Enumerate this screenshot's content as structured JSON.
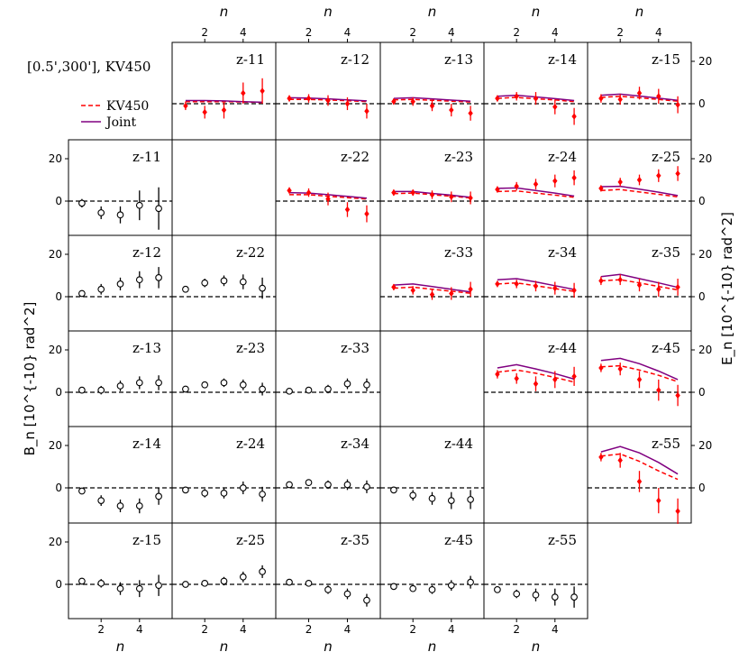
{
  "chart_data": {
    "type": "scatter",
    "title": "[0.5',300'],  KV450",
    "x_label": "n",
    "y_label_left": "B_n [10^{-10} rad^2]",
    "y_label_right": "E_n [10^{-10} rad^2]",
    "x_ticks": [
      2,
      4
    ],
    "y_ticks": [
      0,
      20
    ],
    "xlim": [
      0.3,
      5.7
    ],
    "ylim": [
      -12,
      28
    ],
    "n": [
      1,
      2,
      3,
      4,
      5
    ],
    "legend": {
      "placement": "upper-left",
      "entries": [
        "KV450",
        "Joint"
      ]
    },
    "colors": {
      "kv450": "#ff0000",
      "joint": "#800080",
      "b_modes": "#000000"
    },
    "e_modes": [
      {
        "label": "z-11",
        "y": [
          -1,
          -4,
          -3,
          5,
          6
        ],
        "err": [
          2,
          3,
          4,
          5,
          6
        ],
        "kv450": [
          1.0,
          1.0,
          1.0,
          0.8,
          0.6
        ],
        "joint": [
          1.5,
          1.5,
          1.3,
          1.0,
          0.7
        ]
      },
      {
        "label": "z-12",
        "y": [
          2.5,
          2.5,
          1.5,
          0,
          -3.5
        ],
        "err": [
          1.5,
          2,
          2.5,
          3,
          3.5
        ],
        "kv450": [
          2.0,
          2.0,
          1.8,
          1.4,
          1.0
        ],
        "joint": [
          2.8,
          2.7,
          2.3,
          1.8,
          1.3
        ]
      },
      {
        "label": "z-13",
        "y": [
          1,
          1,
          -1,
          -3,
          -4.5
        ],
        "err": [
          1.5,
          2,
          2.5,
          3,
          3.5
        ],
        "kv450": [
          1.8,
          2.0,
          1.6,
          1.2,
          0.8
        ],
        "joint": [
          2.5,
          2.8,
          2.3,
          1.7,
          1.2
        ]
      },
      {
        "label": "z-14",
        "y": [
          2.5,
          3.5,
          2.5,
          -1.5,
          -6
        ],
        "err": [
          1.5,
          2,
          3,
          3.5,
          4
        ],
        "kv450": [
          2.5,
          3.0,
          2.3,
          1.8,
          1.0
        ],
        "joint": [
          3.5,
          4.0,
          3.2,
          2.4,
          1.5
        ]
      },
      {
        "label": "z-15",
        "y": [
          2.5,
          2,
          5,
          3.5,
          -0.5
        ],
        "err": [
          2,
          2.5,
          3,
          3.5,
          4
        ],
        "kv450": [
          3.0,
          3.5,
          2.8,
          2.0,
          1.2
        ],
        "joint": [
          4.0,
          4.5,
          3.6,
          2.6,
          1.6
        ]
      },
      {
        "label": "z-22",
        "y": [
          5,
          4,
          1,
          -4,
          -6
        ],
        "err": [
          1.5,
          2,
          3,
          3.5,
          4
        ],
        "kv450": [
          3.0,
          3.0,
          2.3,
          1.6,
          1.0
        ],
        "joint": [
          4.0,
          3.8,
          3.0,
          2.2,
          1.4
        ]
      },
      {
        "label": "z-23",
        "y": [
          4,
          4,
          3,
          2,
          1.5
        ],
        "err": [
          1.5,
          1.5,
          2,
          2.5,
          3
        ],
        "kv450": [
          3.5,
          3.8,
          3.0,
          2.3,
          1.5
        ],
        "joint": [
          4.5,
          4.5,
          3.6,
          2.8,
          1.8
        ]
      },
      {
        "label": "z-24",
        "y": [
          5.5,
          7,
          8,
          9.5,
          11
        ],
        "err": [
          1.5,
          2,
          2.5,
          3,
          3.5
        ],
        "kv450": [
          4.5,
          4.8,
          3.8,
          2.8,
          1.8
        ],
        "joint": [
          6.0,
          6.2,
          5.0,
          3.8,
          2.4
        ]
      },
      {
        "label": "z-25",
        "y": [
          6,
          9,
          10,
          12,
          13
        ],
        "err": [
          1.5,
          2,
          2.5,
          3,
          3.5
        ],
        "kv450": [
          5.0,
          5.5,
          4.3,
          3.2,
          2.0
        ],
        "joint": [
          6.8,
          7.0,
          5.6,
          4.2,
          2.6
        ]
      },
      {
        "label": "z-33",
        "y": [
          4.5,
          3,
          1,
          1.5,
          3.5
        ],
        "err": [
          1.5,
          2,
          2.5,
          3,
          3.5
        ],
        "kv450": [
          4.0,
          4.5,
          3.5,
          2.6,
          1.6
        ],
        "joint": [
          5.5,
          6.0,
          4.8,
          3.5,
          2.2
        ]
      },
      {
        "label": "z-34",
        "y": [
          6,
          6,
          5,
          4,
          3
        ],
        "err": [
          1.5,
          2,
          2.5,
          3,
          3.5
        ],
        "kv450": [
          6.0,
          6.5,
          5.2,
          3.8,
          2.5
        ],
        "joint": [
          8.0,
          8.5,
          7.0,
          5.2,
          3.4
        ]
      },
      {
        "label": "z-35",
        "y": [
          7.5,
          8,
          5.5,
          3.5,
          4.5
        ],
        "err": [
          2,
          2.5,
          3,
          3.5,
          4
        ],
        "kv450": [
          7.5,
          8.0,
          6.5,
          4.8,
          3.2
        ],
        "joint": [
          9.5,
          10.5,
          8.5,
          6.5,
          4.4
        ]
      },
      {
        "label": "z-44",
        "y": [
          8.5,
          6.5,
          4,
          6,
          7.5
        ],
        "err": [
          2,
          2.5,
          3.5,
          4,
          4.5
        ],
        "kv450": [
          9.5,
          10.5,
          9.0,
          7.0,
          4.8
        ],
        "joint": [
          11.5,
          13.0,
          11.0,
          8.8,
          6.2
        ]
      },
      {
        "label": "z-45",
        "y": [
          11.5,
          11,
          6,
          1,
          -1.5
        ],
        "err": [
          2,
          3,
          4,
          5,
          5
        ],
        "kv450": [
          12.0,
          12.5,
          10.5,
          8.0,
          5.0
        ],
        "joint": [
          15.0,
          16.0,
          13.5,
          10.0,
          6.0
        ]
      },
      {
        "label": "z-55",
        "y": [
          14.5,
          13,
          3,
          -6,
          -11
        ],
        "err": [
          2,
          3.5,
          5,
          6,
          6
        ],
        "kv450": [
          15.0,
          16.0,
          12.5,
          8.0,
          4.0
        ],
        "joint": [
          17.0,
          19.5,
          16.5,
          12.0,
          6.5
        ]
      }
    ],
    "b_modes": [
      {
        "label": "z-11",
        "y": [
          -1,
          -5.5,
          -6.5,
          -2,
          -3.5
        ],
        "err": [
          2,
          3,
          4,
          7,
          10
        ]
      },
      {
        "label": "z-12",
        "y": [
          1.5,
          3.5,
          6,
          8,
          9
        ],
        "err": [
          1.5,
          2.5,
          3,
          4,
          5
        ]
      },
      {
        "label": "z-22",
        "y": [
          3.5,
          6.5,
          7.5,
          7,
          4
        ],
        "err": [
          1.5,
          2,
          2.5,
          3.5,
          5
        ]
      },
      {
        "label": "z-13",
        "y": [
          1,
          1,
          3,
          4.5,
          4.5
        ],
        "err": [
          1.5,
          2,
          2.5,
          3,
          3.5
        ]
      },
      {
        "label": "z-23",
        "y": [
          1.5,
          3.5,
          4.5,
          3.5,
          1.5
        ],
        "err": [
          1.5,
          1.5,
          2,
          2.5,
          3
        ]
      },
      {
        "label": "z-33",
        "y": [
          0.5,
          1,
          1.5,
          4,
          3.5
        ],
        "err": [
          1,
          1.5,
          2,
          2.5,
          3
        ]
      },
      {
        "label": "z-14",
        "y": [
          -1.5,
          -6,
          -8.5,
          -8.5,
          -4
        ],
        "err": [
          1.5,
          2.5,
          3,
          3.5,
          4
        ]
      },
      {
        "label": "z-24",
        "y": [
          -1,
          -2.5,
          -2.5,
          0,
          -3
        ],
        "err": [
          1.5,
          2,
          2.5,
          3,
          3.5
        ]
      },
      {
        "label": "z-34",
        "y": [
          1.5,
          2.5,
          1.5,
          1.5,
          0.5
        ],
        "err": [
          1.5,
          1.5,
          2,
          2.5,
          3
        ]
      },
      {
        "label": "z-44",
        "y": [
          -1,
          -3.5,
          -5,
          -6,
          -5.5
        ],
        "err": [
          1.5,
          2.5,
          3,
          4,
          4.5
        ]
      },
      {
        "label": "z-15",
        "y": [
          1.5,
          0.5,
          -2,
          -2,
          -0.5
        ],
        "err": [
          1.5,
          2,
          3,
          4,
          5
        ]
      },
      {
        "label": "z-25",
        "y": [
          0,
          0.5,
          1.5,
          3.5,
          6
        ],
        "err": [
          1,
          1.5,
          2,
          2.5,
          3
        ]
      },
      {
        "label": "z-35",
        "y": [
          1,
          0.5,
          -2.5,
          -4.5,
          -7.5
        ],
        "err": [
          1,
          1.5,
          2,
          2.5,
          3
        ]
      },
      {
        "label": "z-45",
        "y": [
          -1,
          -2,
          -2.5,
          -0.5,
          1
        ],
        "err": [
          1,
          1.5,
          2,
          2.5,
          3
        ]
      },
      {
        "label": "z-55",
        "y": [
          -2.5,
          -4.5,
          -5,
          -6,
          -6
        ],
        "err": [
          1.5,
          2,
          3,
          4,
          5
        ]
      }
    ]
  }
}
